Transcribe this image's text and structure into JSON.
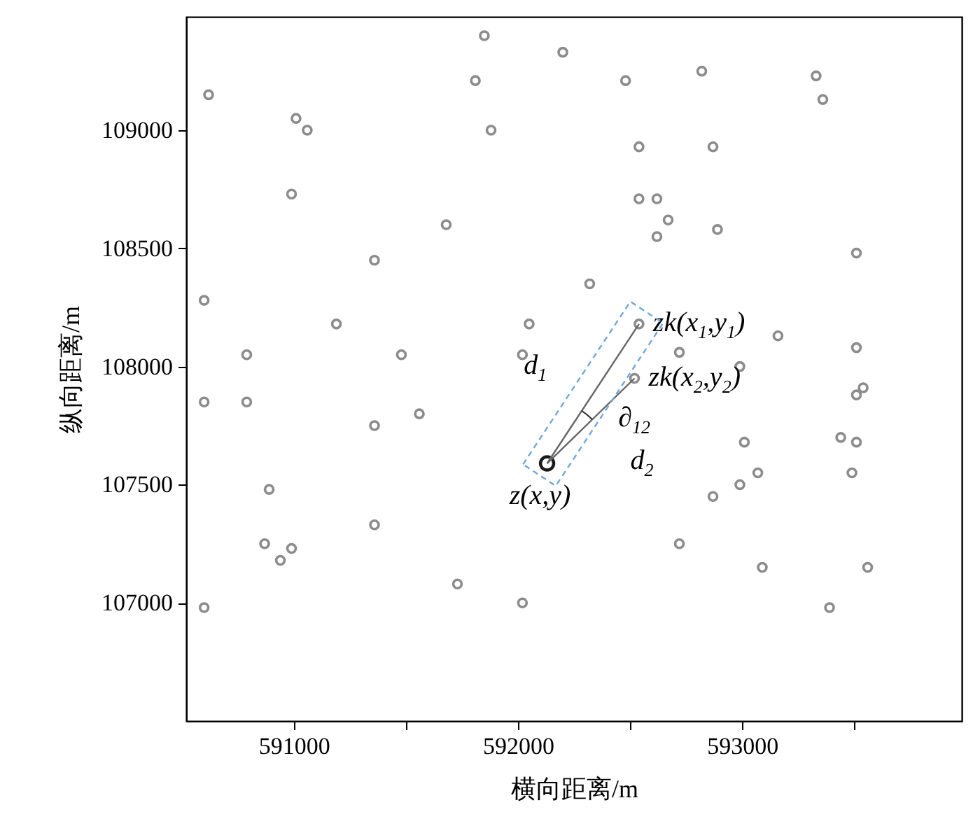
{
  "chart_data": {
    "type": "scatter",
    "xlabel": "横向距离/m",
    "ylabel": "纵向距离/m",
    "xlim": [
      590520,
      593980
    ],
    "ylim": [
      106500,
      109480
    ],
    "xticks": [
      591000,
      {
        "value": 591500,
        "label": null
      },
      592000,
      {
        "value": 592500,
        "label": null
      },
      593000,
      {
        "value": 593500,
        "label": null
      }
    ],
    "yticks": [
      107000,
      107500,
      108000,
      108500,
      109000
    ],
    "grid": false,
    "marker": "circle",
    "series": [
      {
        "color": "#8c8c8c",
        "x": [
          590620,
          591850,
          592200,
          591810,
          591010,
          591060,
          591880,
          590990,
          592480,
          592820,
          593330,
          593360,
          592540,
          592870,
          592540,
          592620,
          592670,
          592620,
          592890,
          591680,
          593510,
          591360,
          592320,
          590600,
          591190,
          592050,
          592540,
          593160,
          593510,
          590790,
          591480,
          592020,
          592720,
          592990,
          592520,
          593510,
          593540,
          590600,
          590790,
          591560,
          593010,
          593440,
          593510,
          591360,
          593070,
          592990,
          593490,
          590890,
          592870,
          590870,
          590990,
          590940,
          591360,
          592720,
          593090,
          593560,
          591730,
          592020,
          590600,
          593390
        ],
        "values": [
          109150,
          109400,
          109330,
          109210,
          109050,
          109000,
          109000,
          108730,
          109210,
          109250,
          109230,
          109130,
          108930,
          108930,
          108710,
          108710,
          108620,
          108550,
          108580,
          108600,
          108480,
          108450,
          108350,
          108280,
          108180,
          108180,
          108180,
          108130,
          108080,
          108050,
          108050,
          108050,
          108060,
          108000,
          107950,
          107880,
          107910,
          107850,
          107850,
          107800,
          107680,
          107700,
          107680,
          107750,
          107550,
          107500,
          107550,
          107480,
          107450,
          107250,
          107230,
          107180,
          107330,
          107250,
          107150,
          107150,
          107080,
          107000,
          106980,
          106980
        ]
      },
      {
        "color": "#1a1a1a",
        "x": [
          592130
        ],
        "values": [
          107590
        ]
      }
    ],
    "annotations": [
      {
        "text": "z(x,y)",
        "x": 592130,
        "y": 107590
      },
      {
        "text": "zk(x$_{1}$,y$_{1}$)",
        "x": 592540,
        "y": 108180
      },
      {
        "text": "zk(x$_{2}$,y$_{2}$)",
        "x": 592520,
        "y": 107950
      },
      "d$_{1}$",
      "d$_{2}$",
      {
        "text": "∂$_{12}$",
        "x": 592310,
        "y": 107800
      }
    ]
  }
}
